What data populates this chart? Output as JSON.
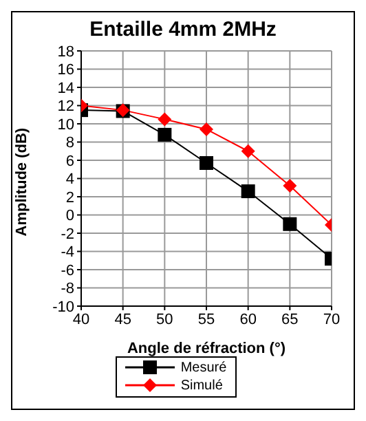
{
  "chart_data": {
    "type": "line",
    "title": "Entaille 4mm 2MHz",
    "xlabel": "Angle de réfraction (°)",
    "ylabel": "Amplitude (dB)",
    "x": [
      40,
      45,
      50,
      55,
      60,
      65,
      70
    ],
    "xlim": [
      40,
      70
    ],
    "xticks": [
      40,
      45,
      50,
      55,
      60,
      65,
      70
    ],
    "ylim": [
      -10,
      18
    ],
    "yticks": [
      -10,
      -8,
      -6,
      -4,
      -2,
      0,
      2,
      4,
      6,
      8,
      10,
      12,
      14,
      16,
      18
    ],
    "grid": true,
    "legend": "bottom",
    "series": [
      {
        "name": "Mesuré",
        "color": "#000000",
        "marker": "square",
        "values": [
          11.5,
          11.4,
          8.8,
          5.7,
          2.6,
          -1.0,
          -4.8
        ]
      },
      {
        "name": "Simulé",
        "color": "#ff0000",
        "marker": "diamond",
        "values": [
          12.0,
          11.5,
          10.5,
          9.4,
          7.0,
          3.2,
          -1.1
        ]
      }
    ]
  }
}
